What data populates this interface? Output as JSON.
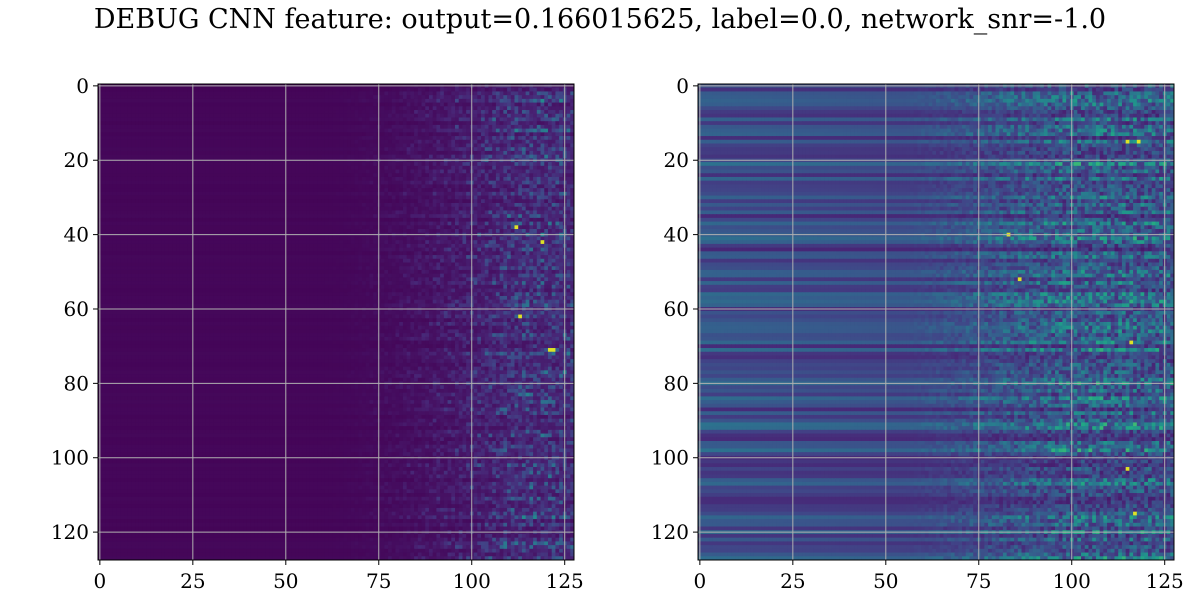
{
  "figure": {
    "title": "DEBUG CNN feature: output=0.166015625, label=0.0, network_snr=-1.0"
  },
  "chart_data": [
    {
      "type": "heatmap",
      "title": "",
      "xlabel": "",
      "ylabel": "",
      "rows": 128,
      "cols": 128,
      "xlim": [
        0,
        127
      ],
      "ylim": [
        127,
        0
      ],
      "colormap": "viridis",
      "grid": true,
      "x_ticks": [
        0,
        25,
        50,
        75,
        100,
        125
      ],
      "y_ticks": [
        0,
        20,
        40,
        60,
        80,
        100,
        120
      ],
      "pattern": "near-zero values for columns 0-75, rising noisy activation from ~75 to 127; bright spots near (71,122), (42,119), (38,112)",
      "value_range": [
        0,
        1
      ]
    },
    {
      "type": "heatmap",
      "title": "",
      "xlabel": "",
      "ylabel": "",
      "rows": 128,
      "cols": 128,
      "xlim": [
        0,
        127
      ],
      "ylim": [
        127,
        0
      ],
      "colormap": "viridis",
      "grid": true,
      "x_ticks": [
        0,
        25,
        50,
        75,
        100,
        125
      ],
      "y_ticks": [
        0,
        20,
        40,
        60,
        80,
        100,
        120
      ],
      "pattern": "horizontal row-wise bands across all columns; noisy texture from ~60 to 127; bright spots near (15,115), (40,83), (52,86), (115,117)",
      "value_range": [
        0,
        1
      ]
    }
  ],
  "colors": {
    "viridis_low": "#440154",
    "viridis_mid": "#21918c",
    "viridis_high": "#fde725",
    "grid": "#b0b0b0",
    "axis": "#000000"
  }
}
